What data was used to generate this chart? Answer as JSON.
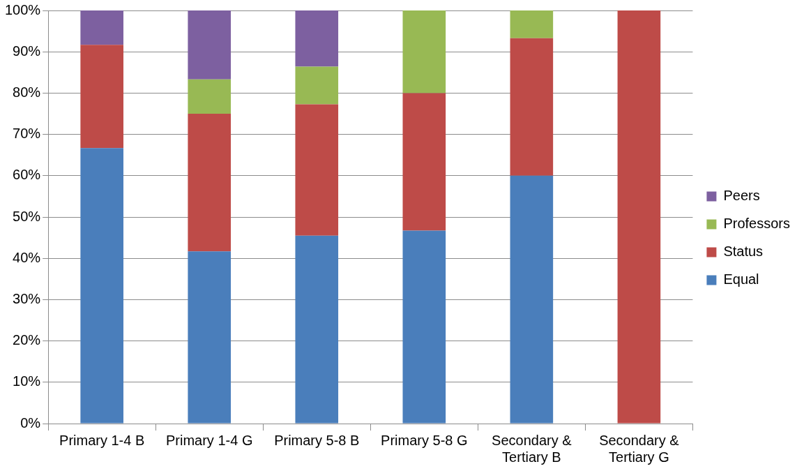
{
  "chart_data": {
    "type": "bar",
    "stacked": true,
    "categories": [
      "Primary 1-4 B",
      "Primary 1-4 G",
      "Primary 5-8 B",
      "Primary 5-8 G",
      "Secondary & Tertiary B",
      "Secondary & Tertiary G"
    ],
    "series": [
      {
        "name": "Equal",
        "color": "#4a7ebb",
        "values": [
          66.7,
          41.7,
          45.5,
          46.7,
          60,
          0
        ]
      },
      {
        "name": "Status",
        "color": "#be4b48",
        "values": [
          25,
          33.3,
          31.8,
          33.3,
          33.3,
          100
        ]
      },
      {
        "name": "Professors",
        "color": "#98b954",
        "values": [
          0,
          8.3,
          9.1,
          20,
          6.7,
          0
        ]
      },
      {
        "name": "Peers",
        "color": "#7d60a0",
        "values": [
          8.3,
          16.7,
          13.6,
          0,
          0,
          0
        ]
      }
    ],
    "ylim": [
      0,
      100
    ],
    "yticks": [
      {
        "value": 0,
        "label": "0%"
      },
      {
        "value": 10,
        "label": "10%"
      },
      {
        "value": 20,
        "label": "20%"
      },
      {
        "value": 30,
        "label": "30%"
      },
      {
        "value": 40,
        "label": "40%"
      },
      {
        "value": 50,
        "label": "50%"
      },
      {
        "value": 60,
        "label": "60%"
      },
      {
        "value": 70,
        "label": "70%"
      },
      {
        "value": 80,
        "label": "80%"
      },
      {
        "value": 90,
        "label": "90%"
      },
      {
        "value": 100,
        "label": "100%"
      }
    ],
    "grid": "y",
    "legend": "right"
  }
}
